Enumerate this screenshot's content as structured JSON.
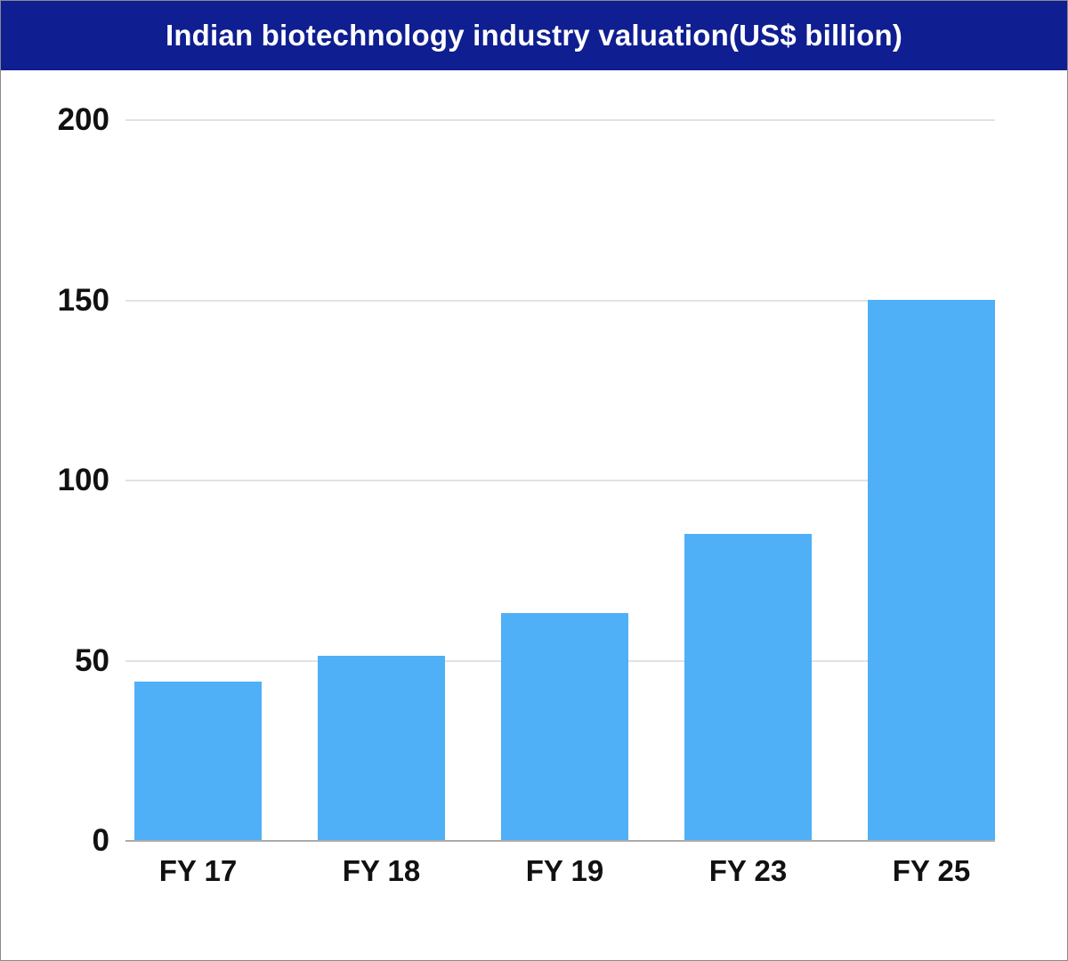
{
  "title": "Indian biotechnology industry valuation(US$ billion)",
  "chart_data": {
    "type": "bar",
    "title": "Indian biotechnology industry valuation(US$ billion)",
    "categories": [
      "FY 17",
      "FY 18",
      "FY 19",
      "FY 23",
      "FY 25"
    ],
    "values": [
      44,
      51,
      63,
      85,
      150
    ],
    "xlabel": "",
    "ylabel": "",
    "ylim": [
      0,
      200
    ],
    "yticks": [
      0,
      50,
      100,
      150,
      200
    ],
    "grid": true,
    "legend": false,
    "bar_color": "#4fb0f8"
  },
  "colors": {
    "banner_bg": "#0f1e90",
    "banner_text": "#ffffff",
    "bar": "#4fb0f8",
    "gridline": "#e2e2e2",
    "baseline": "#ababab",
    "axis_text": "#111111",
    "border": "#8a8a8a",
    "background": "#ffffff"
  }
}
